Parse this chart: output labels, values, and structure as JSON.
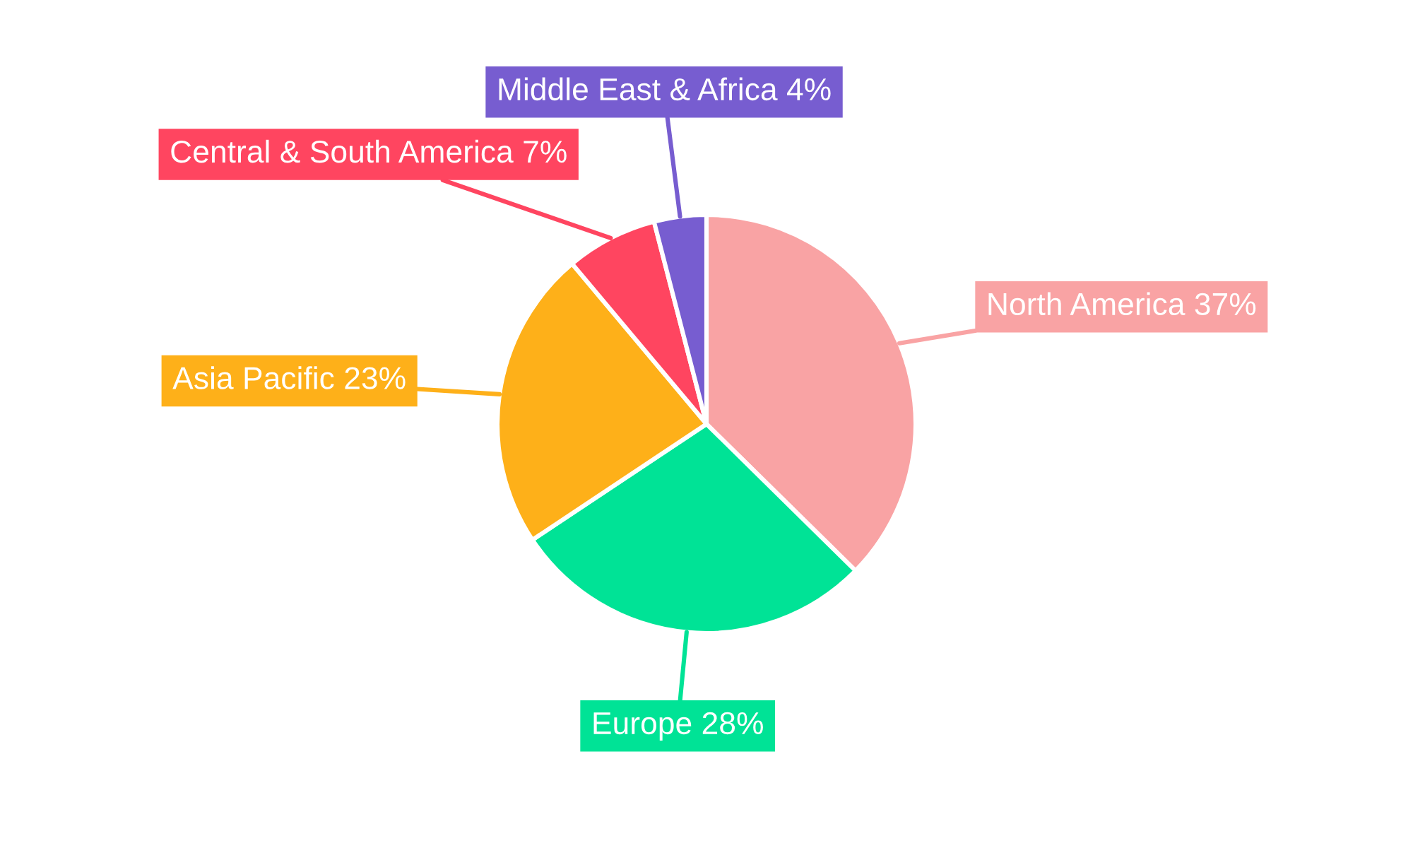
{
  "chart_data": {
    "type": "pie",
    "categories": [
      "North America",
      "Europe",
      "Asia Pacific",
      "Central & South America",
      "Middle East & Africa"
    ],
    "values": [
      37,
      28,
      23,
      7,
      4
    ],
    "value_labels": [
      "37%",
      "28%",
      "23%",
      "7%",
      "4%"
    ],
    "colors": [
      "#f9a3a4",
      "#00e396",
      "#feb019",
      "#ff4560",
      "#775dd0"
    ]
  }
}
